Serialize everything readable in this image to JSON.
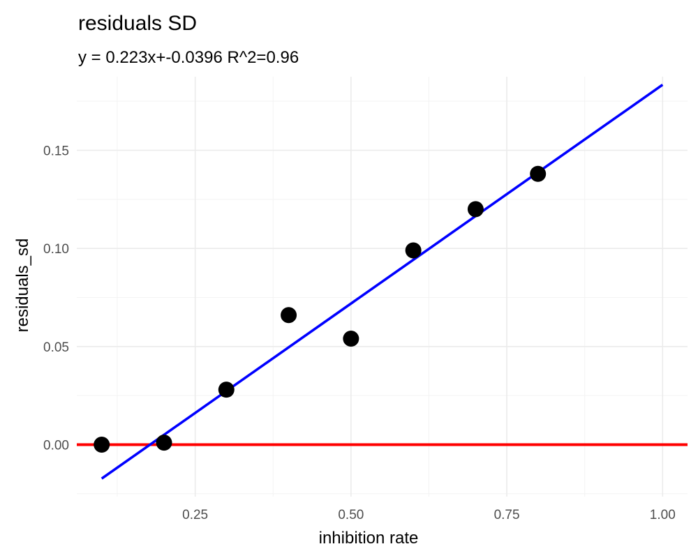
{
  "chart_data": {
    "type": "scatter",
    "title": "residuals SD",
    "subtitle": "y = 0.223x+-0.0396 R^2=0.96",
    "xlabel": "inhibition rate",
    "ylabel": "residuals_sd",
    "xlim": [
      0.06,
      1.04
    ],
    "ylim": [
      -0.0265,
      0.1875
    ],
    "x_ticks": [
      0.25,
      0.5,
      0.75,
      1.0
    ],
    "x_tick_labels": [
      "0.25",
      "0.50",
      "0.75",
      "1.00"
    ],
    "x_minor_ticks": [
      0.125,
      0.375,
      0.625,
      0.875
    ],
    "y_ticks": [
      0.0,
      0.05,
      0.1,
      0.15
    ],
    "y_tick_labels": [
      "0.00",
      "0.05",
      "0.10",
      "0.15"
    ],
    "y_minor_ticks": [
      -0.025,
      0.025,
      0.075,
      0.125,
      0.175
    ],
    "grid": true,
    "points": [
      {
        "x": 0.1,
        "y": 0.0
      },
      {
        "x": 0.2,
        "y": 0.001
      },
      {
        "x": 0.3,
        "y": 0.028
      },
      {
        "x": 0.4,
        "y": 0.066
      },
      {
        "x": 0.5,
        "y": 0.054
      },
      {
        "x": 0.6,
        "y": 0.099
      },
      {
        "x": 0.7,
        "y": 0.12
      },
      {
        "x": 0.8,
        "y": 0.138
      }
    ],
    "fit_line": {
      "slope": 0.223,
      "intercept": -0.0396,
      "x_range": [
        0.1,
        1.0
      ],
      "color": "#0000ff"
    },
    "reference_line": {
      "y": 0.0,
      "color": "#ff0000"
    },
    "point_color": "#000000"
  }
}
